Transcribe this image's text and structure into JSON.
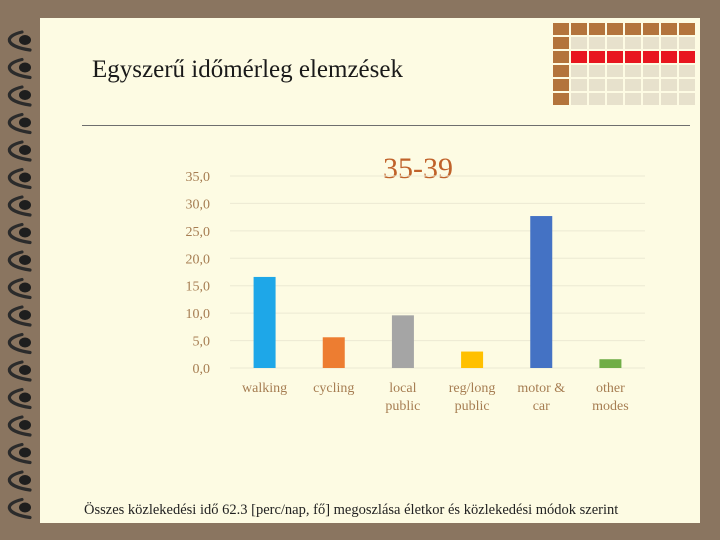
{
  "slide": {
    "title": "Egyszerű időmérleg elemzések",
    "caption": "Összes közlekedési idő 62.3 [perc/nap, fő] megoszlása életkor és közlekedési módok szerint"
  },
  "colors": {
    "background": "#fdfbe3",
    "frame": "#8a7560",
    "chart_title": "#c0622a",
    "axis_text": "#a67d52"
  },
  "chart_data": {
    "type": "bar",
    "title": "35-39",
    "categories": [
      "walking",
      "cycling",
      "local public",
      "reg/long public",
      "motor & car",
      "other modes"
    ],
    "category_lines": [
      [
        "walking"
      ],
      [
        "cycling"
      ],
      [
        "local",
        "public"
      ],
      [
        "reg/long",
        "public"
      ],
      [
        "motor &",
        "car"
      ],
      [
        "other",
        "modes"
      ]
    ],
    "values": [
      16.6,
      5.6,
      9.6,
      3.0,
      27.7,
      1.6
    ],
    "colors": [
      "#1ea7e8",
      "#ed7d31",
      "#a5a5a5",
      "#ffc000",
      "#4472c4",
      "#70ad47"
    ],
    "yticks": [
      "0,0",
      "5,0",
      "10,0",
      "15,0",
      "20,0",
      "25,0",
      "30,0",
      "35,0"
    ],
    "ylim": [
      0,
      35
    ],
    "grid": true,
    "legend": "none",
    "xlabel": "",
    "ylabel": ""
  }
}
